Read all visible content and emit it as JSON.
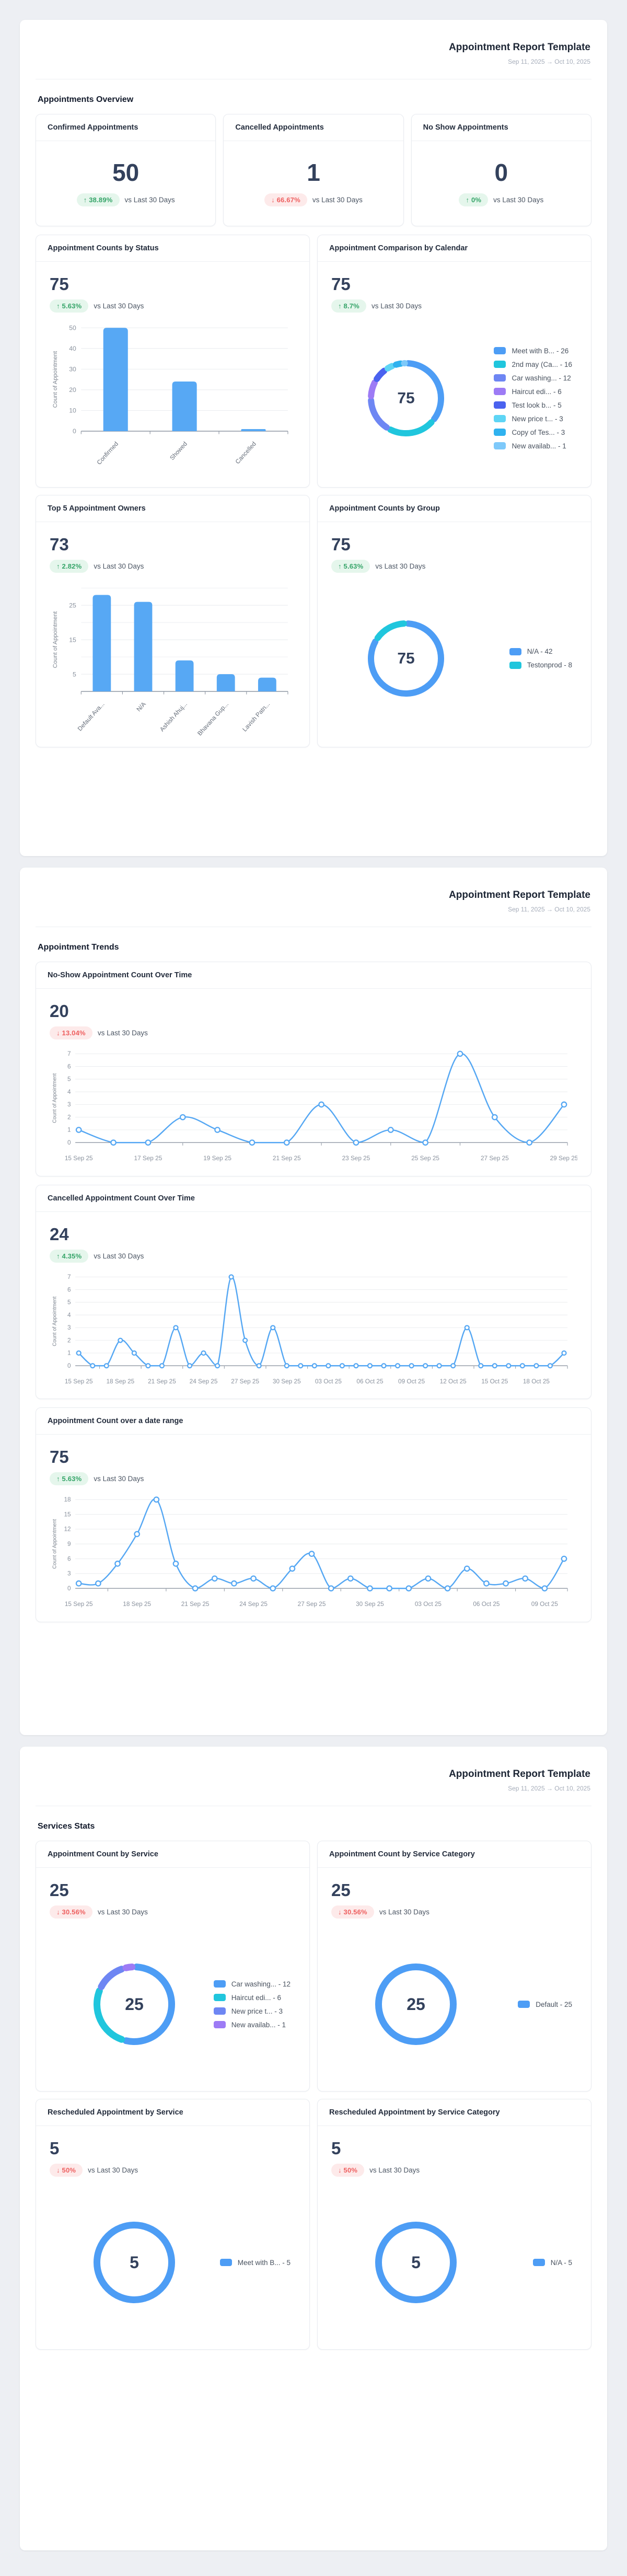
{
  "report": {
    "title": "Appointment Report Template",
    "date_range": "Sep 11, 2025 → Oct 10, 2025"
  },
  "sections": {
    "page1": "Appointments Overview",
    "page2": "Appointment Trends",
    "page3": "Services Stats"
  },
  "stats": [
    {
      "title": "Confirmed Appointments",
      "value": "50",
      "badge": "↑ 38.89%",
      "tone": "up",
      "vs": "vs Last 30 Days"
    },
    {
      "title": "Cancelled Appointments",
      "value": "1",
      "badge": "↓ 66.67%",
      "tone": "down",
      "vs": "vs Last 30 Days"
    },
    {
      "title": "No Show Appointments",
      "value": "0",
      "badge": "↑ 0%",
      "tone": "up",
      "vs": "vs Last 30 Days"
    }
  ],
  "colors": {
    "accent_blue": "#4d9df5",
    "line_blue": "#55a7f3",
    "bar_blue": "#57a8f4",
    "positive_green": "#35a468",
    "negative_red": "#ee5f5f"
  },
  "chart_data": [
    {
      "id": "status-bar",
      "type": "bar",
      "title": "Appointment Counts by Status",
      "value": "75",
      "badge": "↑ 5.63%",
      "tone": "up",
      "vs": "vs Last 30 Days",
      "ylabel": "Count of Appointment",
      "categories": [
        "Confirmed",
        "Showed",
        "Cancelled"
      ],
      "values": [
        50,
        24,
        1
      ],
      "yticks": [
        0,
        10,
        20,
        30,
        40,
        50
      ],
      "yticks_minor": [],
      "ymax": 50
    },
    {
      "id": "calendar-donut",
      "type": "donut",
      "title": "Appointment Comparison by Calendar",
      "value": "75",
      "badge": "↑ 8.7%",
      "tone": "up",
      "vs": "vs Last 30 Days",
      "center": "75",
      "items": [
        {
          "label": "Meet with B...",
          "value": 26,
          "color": "#4d9df5"
        },
        {
          "label": "2nd may (Ca...",
          "value": 16,
          "color": "#20c6dd"
        },
        {
          "label": "Car washing...",
          "value": 12,
          "color": "#6e86f3"
        },
        {
          "label": "Haircut edi...",
          "value": 6,
          "color": "#9d7bf5"
        },
        {
          "label": "Test look b...",
          "value": 5,
          "color": "#4a62ef"
        },
        {
          "label": "New price t...",
          "value": 3,
          "color": "#5ed5f5"
        },
        {
          "label": "Copy of Tes...",
          "value": 3,
          "color": "#2fb2ef"
        },
        {
          "label": "New availab...",
          "value": 1,
          "color": "#7ec9fa"
        }
      ]
    },
    {
      "id": "owners-bar",
      "type": "bar",
      "title": "Top 5 Appointment Owners",
      "value": "73",
      "badge": "↑ 2.82%",
      "tone": "up",
      "vs": "vs Last 30 Days",
      "ylabel": "Count of Appointment",
      "categories": [
        "Default Ava...",
        "N/A",
        "Ashish Ahuj...",
        "Bhavana Gup...",
        "Lavish Patn..."
      ],
      "values": [
        28,
        26,
        9,
        5,
        4
      ],
      "yticks": [
        5,
        15,
        25
      ],
      "yticks_minor": [
        10,
        20,
        30
      ],
      "ymax": 30
    },
    {
      "id": "group-donut",
      "type": "donut",
      "title": "Appointment Counts by Group",
      "value": "75",
      "badge": "↑ 5.63%",
      "tone": "up",
      "vs": "vs Last 30 Days",
      "center": "75",
      "items": [
        {
          "label": "N/A",
          "value": 42,
          "color": "#4d9df5"
        },
        {
          "label": "Testonprod",
          "value": 8,
          "color": "#20c6dd"
        }
      ]
    },
    {
      "id": "noshow-line",
      "type": "line",
      "title": "No-Show Appointment Count Over Time",
      "value": "20",
      "badge": "↓ 13.04%",
      "tone": "down",
      "vs": "vs Last 30 Days",
      "ylabel": "Count of Appointment",
      "yticks": [
        0,
        1,
        2,
        3,
        4,
        5,
        6,
        7
      ],
      "points": [
        1,
        0,
        0,
        2,
        1,
        0,
        0,
        3,
        0,
        1,
        0,
        7,
        2,
        0,
        3
      ],
      "x_tick_indices": [
        0,
        2,
        4,
        6,
        8,
        10,
        12,
        14
      ],
      "x_tick_labels": [
        "15 Sep 25",
        "17 Sep 25",
        "19 Sep 25",
        "21 Sep 25",
        "23 Sep 25",
        "25 Sep 25",
        "27 Sep 25",
        "29 Sep 25"
      ]
    },
    {
      "id": "cancelled-line",
      "type": "line",
      "title": "Cancelled Appointment Count Over Time",
      "value": "24",
      "badge": "↑ 4.35%",
      "tone": "up",
      "vs": "vs Last 30 Days",
      "ylabel": "Count of Appointment",
      "yticks": [
        0,
        1,
        2,
        3,
        4,
        5,
        6,
        7
      ],
      "points": [
        1,
        0,
        0,
        2,
        1,
        0,
        0,
        3,
        0,
        1,
        0,
        7,
        2,
        0,
        3,
        0,
        0,
        0,
        0,
        0,
        0,
        0,
        0,
        0,
        0,
        0,
        0,
        0,
        3,
        0,
        0,
        0,
        0,
        0,
        0,
        1
      ],
      "x_tick_indices": [
        0,
        3,
        6,
        9,
        12,
        15,
        18,
        21,
        24,
        27,
        30,
        33
      ],
      "x_tick_labels": [
        "15 Sep 25",
        "18 Sep 25",
        "21 Sep 25",
        "24 Sep 25",
        "27 Sep 25",
        "30 Sep 25",
        "03 Oct 25",
        "06 Oct 25",
        "09 Oct 25",
        "12 Oct 25",
        "15 Oct 25",
        "18 Oct 25"
      ]
    },
    {
      "id": "range-line",
      "type": "line",
      "title": "Appointment Count over a date range",
      "value": "75",
      "badge": "↑ 5.63%",
      "tone": "up",
      "vs": "vs Last 30 Days",
      "ylabel": "Count of Appointment",
      "yticks": [
        0,
        3,
        6,
        9,
        12,
        15,
        18
      ],
      "points": [
        1,
        1,
        5,
        11,
        18,
        5,
        0,
        2,
        1,
        2,
        0,
        4,
        7,
        0,
        2,
        0,
        0,
        0,
        2,
        0,
        4,
        1,
        1,
        2,
        0,
        6
      ],
      "x_tick_indices": [
        0,
        3,
        6,
        9,
        12,
        15,
        18,
        21,
        24
      ],
      "x_tick_labels": [
        "15 Sep 25",
        "18 Sep 25",
        "21 Sep 25",
        "24 Sep 25",
        "27 Sep 25",
        "30 Sep 25",
        "03 Oct 25",
        "06 Oct 25",
        "09 Oct 25"
      ]
    },
    {
      "id": "service-donut",
      "type": "donut",
      "title": "Appointment Count by Service",
      "value": "25",
      "badge": "↓ 30.56%",
      "tone": "down",
      "vs": "vs Last 30 Days",
      "center": "25",
      "items": [
        {
          "label": "Car washing...",
          "value": 12,
          "color": "#4d9df5"
        },
        {
          "label": "Haircut edi...",
          "value": 6,
          "color": "#20c6dd"
        },
        {
          "label": "New price t...",
          "value": 3,
          "color": "#6e86f3"
        },
        {
          "label": "New availab...",
          "value": 1,
          "color": "#9d7bf5"
        }
      ]
    },
    {
      "id": "service-category-donut",
      "type": "donut",
      "title": "Appointment Count by Service Category",
      "value": "25",
      "badge": "↓ 30.56%",
      "tone": "down",
      "vs": "vs Last 30 Days",
      "center": "25",
      "items": [
        {
          "label": "Default",
          "value": 25,
          "color": "#4d9df5"
        }
      ]
    },
    {
      "id": "resched-service-donut",
      "type": "donut",
      "title": "Rescheduled Appointment by Service",
      "value": "5",
      "badge": "↓ 50%",
      "tone": "down",
      "vs": "vs Last 30 Days",
      "center": "5",
      "items": [
        {
          "label": "Meet with B...",
          "value": 5,
          "color": "#4d9df5"
        }
      ]
    },
    {
      "id": "resched-service-category-donut",
      "type": "donut",
      "title": "Rescheduled Appointment by Service Category",
      "value": "5",
      "badge": "↓ 50%",
      "tone": "down",
      "vs": "vs Last 30 Days",
      "center": "5",
      "items": [
        {
          "label": "N/A",
          "value": 5,
          "color": "#4d9df5"
        }
      ]
    }
  ]
}
